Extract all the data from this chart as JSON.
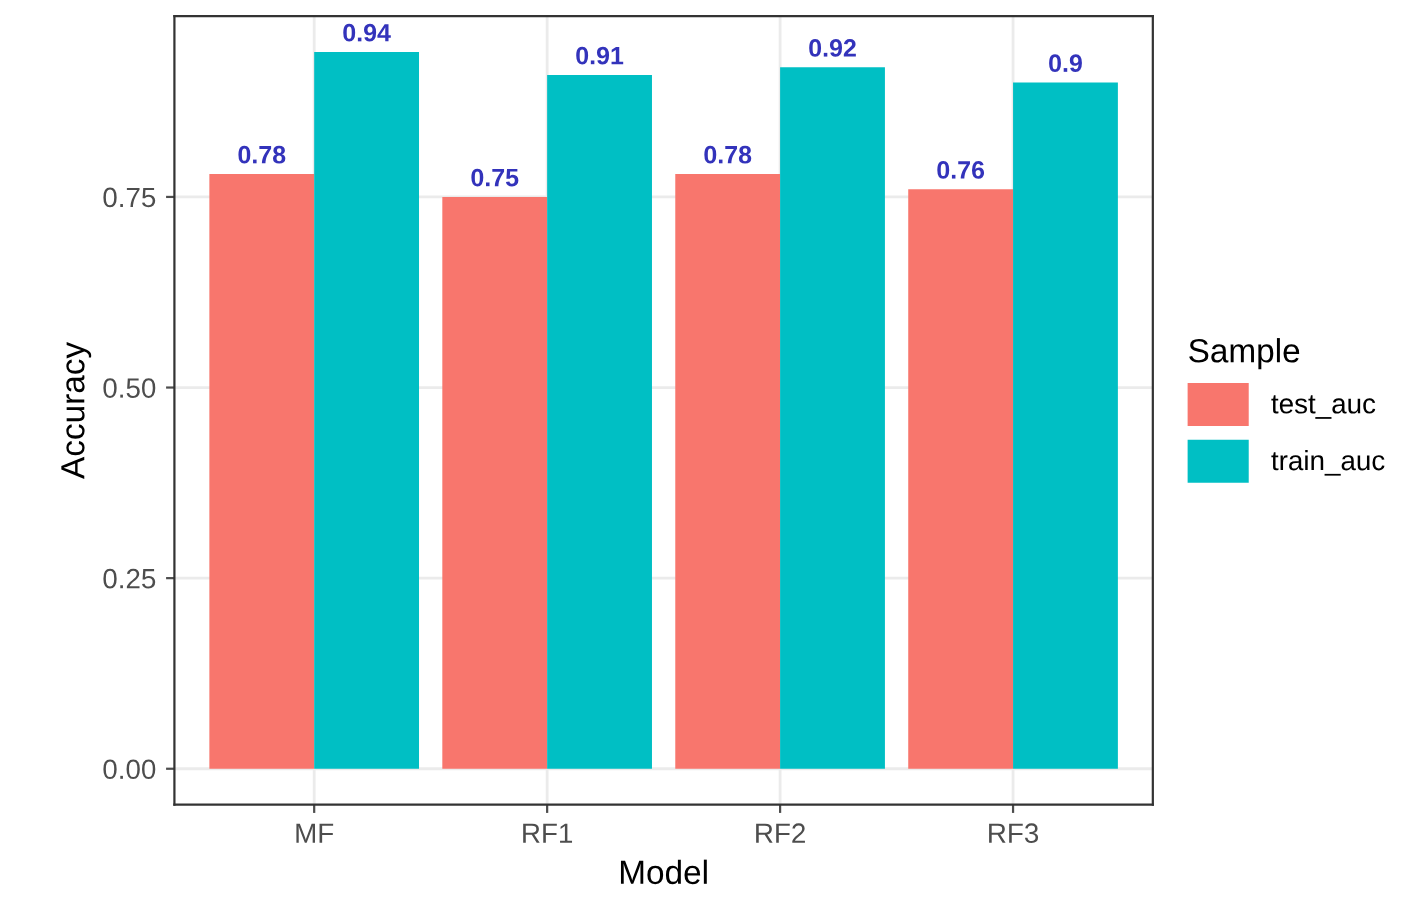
{
  "chart_data": {
    "type": "bar",
    "xlabel": "Model",
    "ylabel": "Accuracy",
    "legend_title": "Sample",
    "categories": [
      "MF",
      "RF1",
      "RF2",
      "RF3"
    ],
    "series": [
      {
        "name": "test_auc",
        "color": "#f8766d",
        "values": [
          0.78,
          0.75,
          0.78,
          0.76
        ]
      },
      {
        "name": "train_auc",
        "color": "#00bfc4",
        "values": [
          0.94,
          0.91,
          0.92,
          0.9
        ]
      }
    ],
    "ylim": [
      -0.047,
      0.987
    ],
    "yticks": [
      {
        "value": 0,
        "label": "0.00"
      },
      {
        "value": 0.25,
        "label": "0.25"
      },
      {
        "value": 0.5,
        "label": "0.50"
      },
      {
        "value": 0.75,
        "label": "0.75"
      }
    ],
    "grid": true,
    "legend": "right",
    "data_labels": true
  }
}
